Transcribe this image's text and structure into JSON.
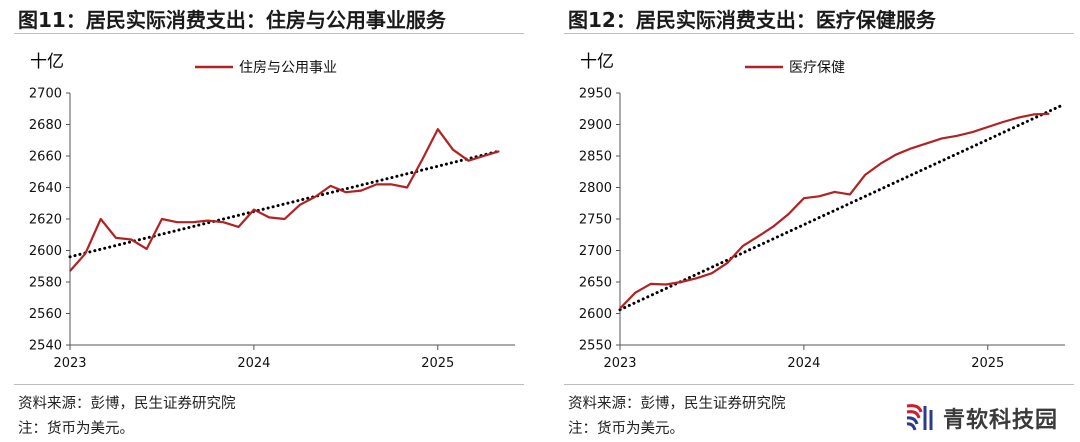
{
  "charts": [
    {
      "title": "图11：居民实际消费支出：住房与公用事业服务",
      "unit": "十亿",
      "source": "资料来源：彭博，民生证券研究院",
      "note": "注：货币为美元。",
      "chart_data": {
        "type": "line",
        "ylim": [
          2540,
          2700
        ],
        "yticks": [
          2540,
          2560,
          2580,
          2600,
          2620,
          2640,
          2660,
          2680,
          2700
        ],
        "xlim": [
          2023.0,
          2025.42
        ],
        "xticks": [
          "2023",
          "2024",
          "2025"
        ],
        "legend_position": "top-center",
        "grid": false,
        "series": [
          {
            "name": "住房与公用事业",
            "color": "#b22222",
            "x": [
              2023.0,
              2023.083,
              2023.167,
              2023.25,
              2023.333,
              2023.417,
              2023.5,
              2023.583,
              2023.667,
              2023.75,
              2023.833,
              2023.917,
              2024.0,
              2024.083,
              2024.167,
              2024.25,
              2024.333,
              2024.417,
              2024.5,
              2024.583,
              2024.667,
              2024.75,
              2024.833,
              2024.917,
              2025.0,
              2025.083,
              2025.167,
              2025.25,
              2025.333
            ],
            "values": [
              2587,
              2598,
              2620,
              2608,
              2607,
              2601,
              2620,
              2618,
              2618,
              2619,
              2618,
              2615,
              2626,
              2621,
              2620,
              2629,
              2634,
              2641,
              2637,
              2638,
              2642,
              2642,
              2640,
              2658,
              2677,
              2664,
              2657,
              2660,
              2663
            ]
          }
        ],
        "trendline": {
          "style": "dotted",
          "color": "#000000",
          "x": [
            2023.0,
            2025.33
          ],
          "values": [
            2596,
            2663
          ]
        }
      }
    },
    {
      "title": "图12：居民实际消费支出：医疗保健服务",
      "unit": "十亿",
      "source": "资料来源：彭博，民生证券研究院",
      "note": "注：货币为美元。",
      "chart_data": {
        "type": "line",
        "ylim": [
          2550,
          2950
        ],
        "yticks": [
          2550,
          2600,
          2650,
          2700,
          2750,
          2800,
          2850,
          2900,
          2950
        ],
        "xlim": [
          2023.0,
          2025.42
        ],
        "xticks": [
          "2023",
          "2024",
          "2025"
        ],
        "legend_position": "top-center",
        "grid": false,
        "series": [
          {
            "name": "医疗保健",
            "color": "#b22222",
            "x": [
              2023.0,
              2023.083,
              2023.167,
              2023.25,
              2023.333,
              2023.417,
              2023.5,
              2023.583,
              2023.667,
              2023.75,
              2023.833,
              2023.917,
              2024.0,
              2024.083,
              2024.167,
              2024.25,
              2024.333,
              2024.417,
              2024.5,
              2024.583,
              2024.667,
              2024.75,
              2024.833,
              2024.917,
              2025.0,
              2025.083,
              2025.167,
              2025.25,
              2025.333
            ],
            "values": [
              2608,
              2633,
              2647,
              2646,
              2650,
              2656,
              2664,
              2680,
              2707,
              2722,
              2738,
              2758,
              2783,
              2786,
              2793,
              2789,
              2820,
              2838,
              2852,
              2862,
              2870,
              2878,
              2882,
              2888,
              2896,
              2904,
              2911,
              2916,
              2917
            ]
          }
        ],
        "trendline": {
          "style": "dotted",
          "color": "#000000",
          "x": [
            2023.0,
            2025.4
          ],
          "values": [
            2606,
            2930
          ]
        }
      }
    }
  ],
  "watermark": {
    "text": "青软科技园"
  }
}
